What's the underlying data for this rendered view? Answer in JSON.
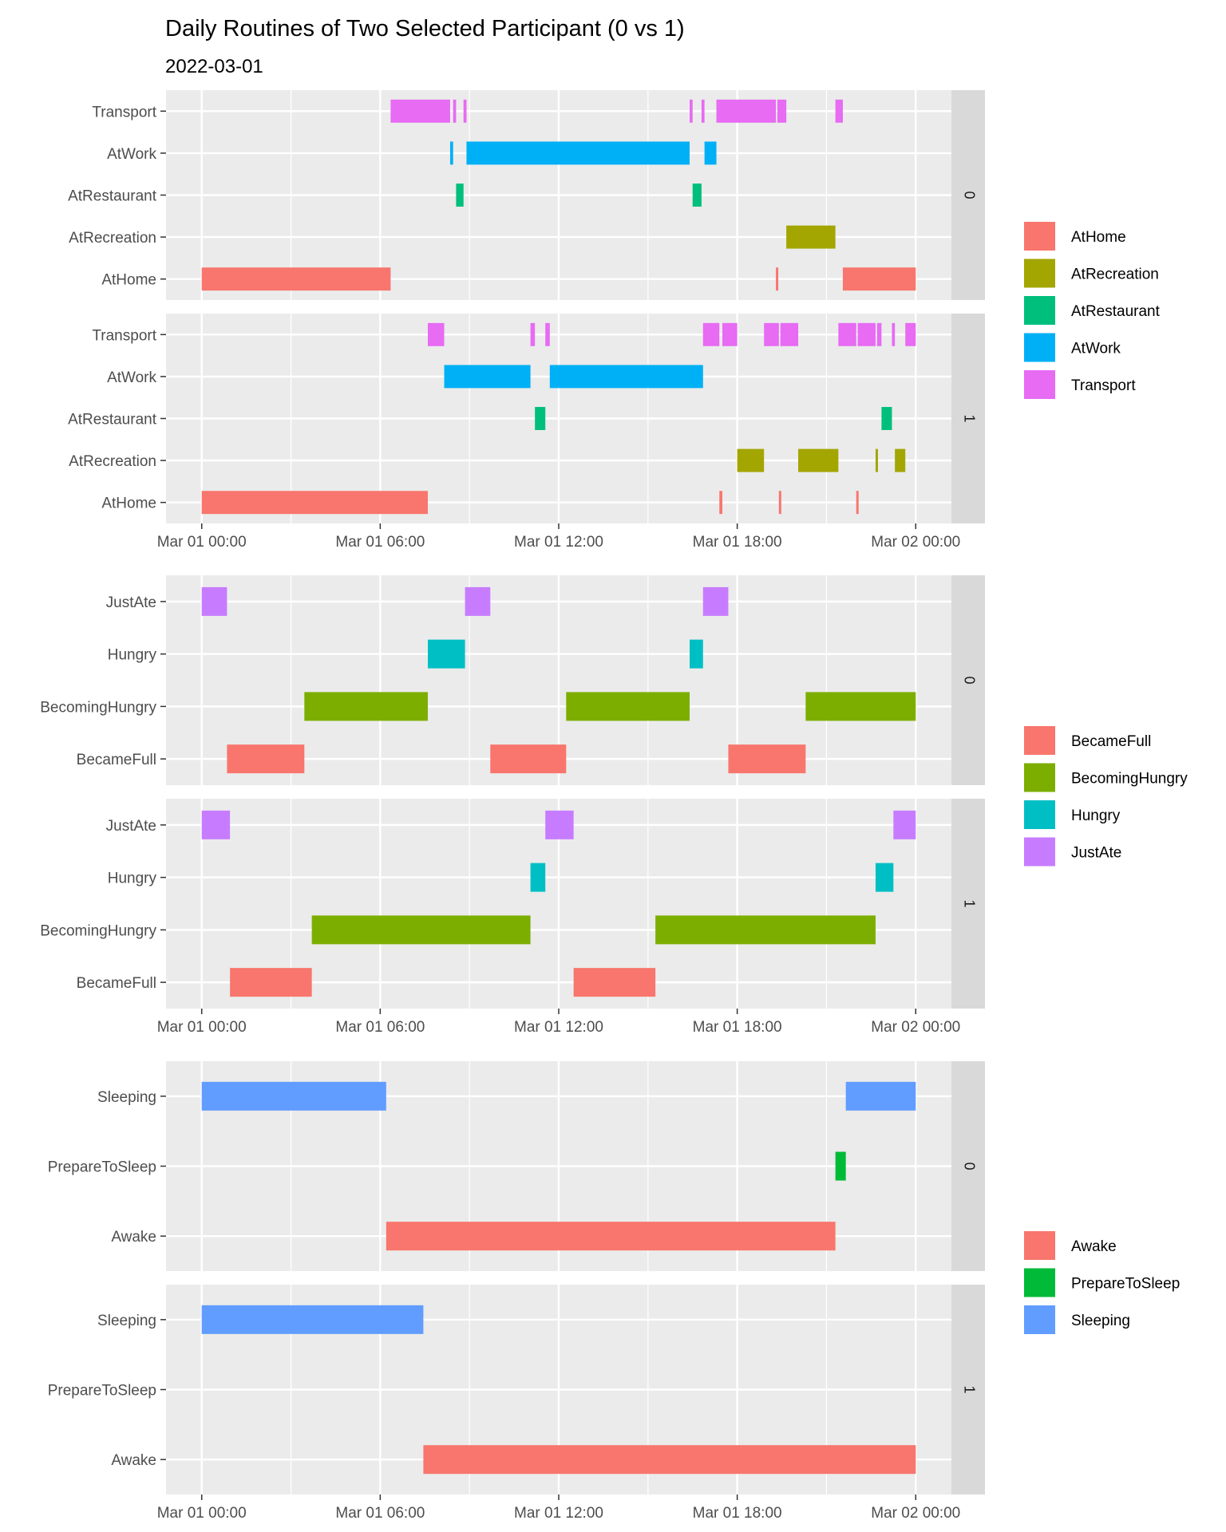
{
  "title": "Daily Routines of Two Selected Participant (0 vs 1)",
  "subtitle": "2022-03-01",
  "chart_data": {
    "type": "timeline",
    "x_ticks": [
      "Mar 01 00:00",
      "Mar 01 06:00",
      "Mar 01 12:00",
      "Mar 01 18:00",
      "Mar 02 00:00"
    ],
    "x_range_hours": [
      -1.2,
      25.2
    ],
    "grid": true,
    "legend_position": "right",
    "panels": [
      {
        "name": "location",
        "categories": [
          "AtHome",
          "AtRecreation",
          "AtRestaurant",
          "AtWork",
          "Transport"
        ],
        "legend": [
          "AtHome",
          "AtRecreation",
          "AtRestaurant",
          "AtWork",
          "Transport"
        ],
        "colors": {
          "AtHome": "#F8766D",
          "AtRecreation": "#A3A500",
          "AtRestaurant": "#00BF7D",
          "AtWork": "#00B0F6",
          "Transport": "#E76BF3"
        },
        "facets": [
          {
            "label": "0",
            "segments": [
              {
                "cat": "Transport",
                "start": 6.35,
                "end": 8.35
              },
              {
                "cat": "Transport",
                "start": 8.45,
                "end": 8.55
              },
              {
                "cat": "Transport",
                "start": 8.8,
                "end": 8.9
              },
              {
                "cat": "Transport",
                "start": 16.4,
                "end": 16.5
              },
              {
                "cat": "Transport",
                "start": 16.8,
                "end": 16.9
              },
              {
                "cat": "Transport",
                "start": 17.3,
                "end": 19.3
              },
              {
                "cat": "Transport",
                "start": 19.35,
                "end": 19.65
              },
              {
                "cat": "Transport",
                "start": 21.3,
                "end": 21.55
              },
              {
                "cat": "AtWork",
                "start": 8.35,
                "end": 8.45
              },
              {
                "cat": "AtWork",
                "start": 8.9,
                "end": 16.4
              },
              {
                "cat": "AtWork",
                "start": 16.9,
                "end": 17.3
              },
              {
                "cat": "AtRestaurant",
                "start": 8.55,
                "end": 8.8
              },
              {
                "cat": "AtRestaurant",
                "start": 16.5,
                "end": 16.8
              },
              {
                "cat": "AtRecreation",
                "start": 19.65,
                "end": 21.3
              },
              {
                "cat": "AtHome",
                "start": 0.0,
                "end": 6.35
              },
              {
                "cat": "AtHome",
                "start": 19.3,
                "end": 19.35
              },
              {
                "cat": "AtHome",
                "start": 21.55,
                "end": 24.0
              }
            ]
          },
          {
            "label": "1",
            "segments": [
              {
                "cat": "Transport",
                "start": 7.6,
                "end": 8.15
              },
              {
                "cat": "Transport",
                "start": 11.05,
                "end": 11.2
              },
              {
                "cat": "Transport",
                "start": 11.55,
                "end": 11.7
              },
              {
                "cat": "Transport",
                "start": 16.85,
                "end": 17.4
              },
              {
                "cat": "Transport",
                "start": 17.5,
                "end": 18.0
              },
              {
                "cat": "Transport",
                "start": 18.9,
                "end": 19.4
              },
              {
                "cat": "Transport",
                "start": 19.45,
                "end": 20.05
              },
              {
                "cat": "Transport",
                "start": 21.4,
                "end": 22.0
              },
              {
                "cat": "Transport",
                "start": 22.05,
                "end": 22.65
              },
              {
                "cat": "Transport",
                "start": 22.7,
                "end": 22.85
              },
              {
                "cat": "Transport",
                "start": 23.2,
                "end": 23.3
              },
              {
                "cat": "Transport",
                "start": 23.65,
                "end": 24.0
              },
              {
                "cat": "AtWork",
                "start": 8.15,
                "end": 11.05
              },
              {
                "cat": "AtWork",
                "start": 11.7,
                "end": 16.85
              },
              {
                "cat": "AtRestaurant",
                "start": 11.2,
                "end": 11.55
              },
              {
                "cat": "AtRestaurant",
                "start": 22.85,
                "end": 23.2
              },
              {
                "cat": "AtRecreation",
                "start": 18.0,
                "end": 18.9
              },
              {
                "cat": "AtRecreation",
                "start": 20.05,
                "end": 21.4
              },
              {
                "cat": "AtRecreation",
                "start": 22.65,
                "end": 22.7
              },
              {
                "cat": "AtRecreation",
                "start": 23.3,
                "end": 23.65
              },
              {
                "cat": "AtHome",
                "start": 0.0,
                "end": 7.6
              },
              {
                "cat": "AtHome",
                "start": 17.4,
                "end": 17.5
              },
              {
                "cat": "AtHome",
                "start": 19.4,
                "end": 19.45
              },
              {
                "cat": "AtHome",
                "start": 22.0,
                "end": 22.05
              }
            ]
          }
        ]
      },
      {
        "name": "hunger",
        "categories": [
          "BecameFull",
          "BecomingHungry",
          "Hungry",
          "JustAte"
        ],
        "legend": [
          "BecameFull",
          "BecomingHungry",
          "Hungry",
          "JustAte"
        ],
        "colors": {
          "BecameFull": "#F8766D",
          "BecomingHungry": "#7CAE00",
          "Hungry": "#00BFC4",
          "JustAte": "#C77CFF"
        },
        "facets": [
          {
            "label": "0",
            "segments": [
              {
                "cat": "JustAte",
                "start": 0.0,
                "end": 0.85
              },
              {
                "cat": "JustAte",
                "start": 8.85,
                "end": 9.7
              },
              {
                "cat": "JustAte",
                "start": 16.85,
                "end": 17.7
              },
              {
                "cat": "Hungry",
                "start": 7.6,
                "end": 8.85
              },
              {
                "cat": "Hungry",
                "start": 16.4,
                "end": 16.85
              },
              {
                "cat": "BecomingHungry",
                "start": 3.45,
                "end": 7.6
              },
              {
                "cat": "BecomingHungry",
                "start": 12.25,
                "end": 16.4
              },
              {
                "cat": "BecomingHungry",
                "start": 20.3,
                "end": 24.0
              },
              {
                "cat": "BecameFull",
                "start": 0.85,
                "end": 3.45
              },
              {
                "cat": "BecameFull",
                "start": 9.7,
                "end": 12.25
              },
              {
                "cat": "BecameFull",
                "start": 17.7,
                "end": 20.3
              }
            ]
          },
          {
            "label": "1",
            "segments": [
              {
                "cat": "JustAte",
                "start": 0.0,
                "end": 0.95
              },
              {
                "cat": "JustAte",
                "start": 11.55,
                "end": 12.5
              },
              {
                "cat": "JustAte",
                "start": 23.25,
                "end": 24.0
              },
              {
                "cat": "Hungry",
                "start": 11.05,
                "end": 11.55
              },
              {
                "cat": "Hungry",
                "start": 22.65,
                "end": 23.25
              },
              {
                "cat": "BecomingHungry",
                "start": 3.7,
                "end": 11.05
              },
              {
                "cat": "BecomingHungry",
                "start": 15.25,
                "end": 22.65
              },
              {
                "cat": "BecameFull",
                "start": 0.95,
                "end": 3.7
              },
              {
                "cat": "BecameFull",
                "start": 12.5,
                "end": 15.25
              }
            ]
          }
        ]
      },
      {
        "name": "sleep",
        "categories": [
          "Awake",
          "PrepareToSleep",
          "Sleeping"
        ],
        "legend": [
          "Awake",
          "PrepareToSleep",
          "Sleeping"
        ],
        "colors": {
          "Awake": "#F8766D",
          "PrepareToSleep": "#00BA38",
          "Sleeping": "#619CFF"
        },
        "facets": [
          {
            "label": "0",
            "segments": [
              {
                "cat": "Sleeping",
                "start": 0.0,
                "end": 6.2
              },
              {
                "cat": "Sleeping",
                "start": 21.65,
                "end": 24.0
              },
              {
                "cat": "PrepareToSleep",
                "start": 21.3,
                "end": 21.65
              },
              {
                "cat": "Awake",
                "start": 6.2,
                "end": 21.3
              }
            ]
          },
          {
            "label": "1",
            "segments": [
              {
                "cat": "Sleeping",
                "start": 0.0,
                "end": 7.45
              },
              {
                "cat": "Awake",
                "start": 7.45,
                "end": 24.0
              }
            ]
          }
        ]
      }
    ]
  }
}
